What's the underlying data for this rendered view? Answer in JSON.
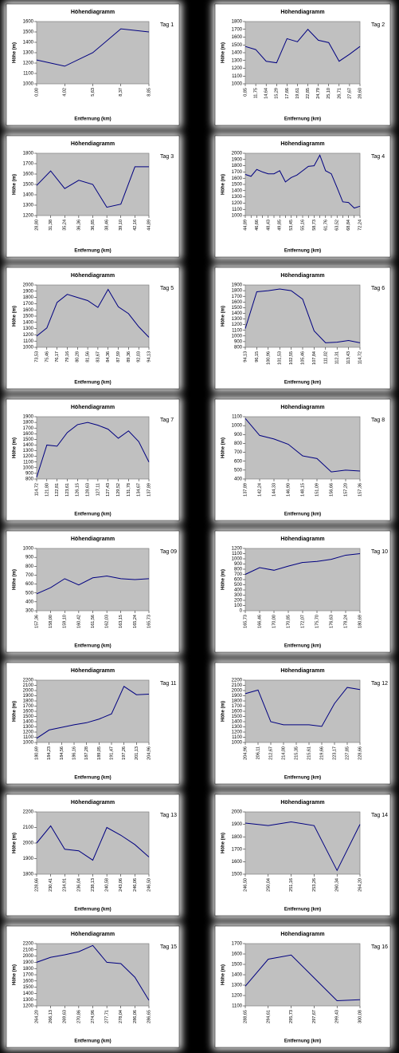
{
  "chart_data": [
    {
      "type": "line",
      "title": "Höhendiagramm",
      "x_label": "Entfernung (km)",
      "y_label": "Höhe (m)",
      "annotation": "Tag 1",
      "color": "#000080",
      "categories": [
        "0,00",
        "4,02",
        "5,63",
        "8,37",
        "8,85"
      ],
      "values": [
        1230,
        1170,
        1300,
        1530,
        1500
      ],
      "ylim": [
        1000,
        1600
      ],
      "yticks": [
        1000,
        1100,
        1200,
        1300,
        1400,
        1500,
        1600
      ]
    },
    {
      "type": "line",
      "title": "Höhendiagramm",
      "x_label": "Entfernung (km)",
      "y_label": "Höhe (m)",
      "annotation": "Tag 2",
      "color": "#000080",
      "categories": [
        "0,85",
        "11,75",
        "14,64",
        "15,29",
        "17,66",
        "19,61",
        "22,85",
        "24,79",
        "25,10",
        "26,71",
        "27,67",
        "28,60"
      ],
      "values": [
        1480,
        1440,
        1290,
        1270,
        1580,
        1540,
        1700,
        1560,
        1530,
        1290,
        1380,
        1480
      ],
      "ylim": [
        1000,
        1800
      ],
      "yticks": [
        1000,
        1100,
        1200,
        1300,
        1400,
        1500,
        1600,
        1700,
        1800
      ]
    },
    {
      "type": "line",
      "title": "Höhendiagramm",
      "x_label": "Entfernung (km)",
      "y_label": "Höhe (m)",
      "annotation": "Tag 3",
      "color": "#000080",
      "categories": [
        "28,80",
        "31,38",
        "35,24",
        "36,36",
        "36,85",
        "38,46",
        "39,10",
        "42,16",
        "44,89"
      ],
      "values": [
        1490,
        1630,
        1460,
        1540,
        1500,
        1280,
        1310,
        1670,
        1670
      ],
      "ylim": [
        1200,
        1800
      ],
      "yticks": [
        1200,
        1300,
        1400,
        1500,
        1600,
        1700,
        1800
      ]
    },
    {
      "type": "line",
      "title": "Höhendiagramm",
      "x_label": "Entfernung (km)",
      "y_label": "Höhe (m)",
      "annotation": "Tag 4",
      "color": "#000080",
      "categories": [
        "44,89",
        null,
        "46,66",
        null,
        "48,43",
        null,
        "49,85",
        null,
        "53,45",
        null,
        "55,16",
        null,
        "58,73",
        null,
        "61,76",
        null,
        "63,52",
        null,
        "68,84",
        null,
        "72,24"
      ],
      "values": [
        1660,
        1630,
        1740,
        1700,
        1670,
        1670,
        1720,
        1540,
        1610,
        1650,
        1720,
        1790,
        1800,
        1970,
        1720,
        1670,
        1450,
        1220,
        1210,
        1120,
        1150
      ],
      "ylim": [
        1000,
        2000
      ],
      "yticks": [
        1000,
        1100,
        1200,
        1300,
        1400,
        1500,
        1600,
        1700,
        1800,
        1900,
        2000
      ]
    },
    {
      "type": "line",
      "title": "Höhendiagramm",
      "x_label": "Entfernung (km)",
      "y_label": "Höhe (m)",
      "annotation": "Tag 5",
      "color": "#000080",
      "categories": [
        "73,53",
        "75,46",
        "76,17",
        "79,16",
        "80,28",
        "81,56",
        "83,67",
        "84,36",
        "87,59",
        "89,36",
        "92,03",
        "94,13"
      ],
      "values": [
        1180,
        1310,
        1720,
        1850,
        1800,
        1750,
        1640,
        1930,
        1650,
        1540,
        1330,
        1160
      ],
      "ylim": [
        1000,
        2000
      ],
      "yticks": [
        1000,
        1100,
        1200,
        1300,
        1400,
        1500,
        1600,
        1700,
        1800,
        1900,
        2000
      ]
    },
    {
      "type": "line",
      "title": "Höhendiagramm",
      "x_label": "Entfernung (km)",
      "y_label": "Höhe (m)",
      "annotation": "Tag 6",
      "color": "#000080",
      "categories": [
        "94,13",
        "96,15",
        "100,96",
        "101,53",
        "102,55",
        "105,46",
        "107,84",
        "111,02",
        "112,31",
        "113,43",
        "114,72"
      ],
      "values": [
        1130,
        1780,
        1800,
        1830,
        1800,
        1650,
        1090,
        880,
        890,
        920,
        880
      ],
      "ylim": [
        800,
        1900
      ],
      "yticks": [
        800,
        900,
        1000,
        1100,
        1200,
        1300,
        1400,
        1500,
        1600,
        1700,
        1800,
        1900
      ]
    },
    {
      "type": "line",
      "title": "Höhendiagramm",
      "x_label": "Entfernung (km)",
      "y_label": "Höhe (m)",
      "annotation": "Tag 7",
      "color": "#000080",
      "categories": [
        "114,72",
        "121,80",
        "122,81",
        "123,61",
        "126,15",
        "128,63",
        "127,11",
        "127,43",
        "129,52",
        "131,78",
        "134,67",
        "137,89"
      ],
      "values": [
        830,
        1400,
        1380,
        1620,
        1760,
        1800,
        1750,
        1680,
        1520,
        1650,
        1460,
        1100
      ],
      "ylim": [
        800,
        1900
      ],
      "yticks": [
        800,
        900,
        1000,
        1100,
        1200,
        1300,
        1400,
        1500,
        1600,
        1700,
        1800,
        1900
      ]
    },
    {
      "type": "line",
      "title": "Höhendiagramm",
      "x_label": "Entfernung (km)",
      "y_label": "Höhe (m)",
      "annotation": "Tag 8",
      "color": "#000080",
      "categories": [
        "137,89",
        "142,24",
        "144,33",
        "146,90",
        "148,15",
        "151,09",
        "156,66",
        "157,20",
        "157,36"
      ],
      "values": [
        1080,
        890,
        850,
        790,
        660,
        630,
        480,
        500,
        490
      ],
      "ylim": [
        400,
        1100
      ],
      "yticks": [
        400,
        500,
        600,
        700,
        800,
        900,
        1000,
        1100
      ]
    },
    {
      "type": "line",
      "title": "Höhendiagramm",
      "x_label": "Entfernung (km)",
      "y_label": "Höhe (m)",
      "annotation": "Tag 09",
      "color": "#000080",
      "categories": [
        "157,36",
        "158,00",
        "159,10",
        "160,42",
        "161,56",
        "162,03",
        "163,15",
        "165,24",
        "165,73"
      ],
      "values": [
        490,
        560,
        660,
        590,
        670,
        690,
        660,
        650,
        660
      ],
      "ylim": [
        300,
        1000
      ],
      "yticks": [
        300,
        400,
        500,
        600,
        700,
        800,
        900,
        1000
      ]
    },
    {
      "type": "line",
      "title": "Höhendiagramm",
      "x_label": "Entfernung (km)",
      "y_label": "Höhe (m)",
      "annotation": "Tag 10",
      "color": "#000080",
      "categories": [
        "165,73",
        "166,46",
        "170,00",
        "170,85",
        "172,07",
        "175,70",
        "176,63",
        "178,24",
        "180,69"
      ],
      "values": [
        700,
        830,
        780,
        860,
        930,
        950,
        990,
        1070,
        1100
      ],
      "ylim": [
        0,
        1200
      ],
      "yticks": [
        0,
        100,
        200,
        300,
        400,
        500,
        600,
        700,
        800,
        900,
        1000,
        1100,
        1200
      ]
    },
    {
      "type": "line",
      "title": "Höhendiagramm",
      "x_label": "Entfernung (km)",
      "y_label": "Höhe (m)",
      "annotation": "Tag 11",
      "color": "#000080",
      "categories": [
        "180,69",
        "184,23",
        "184,56",
        "186,16",
        "187,28",
        "189,05",
        "191,47",
        "197,26",
        "201,13",
        "204,96"
      ],
      "values": [
        1080,
        1240,
        1290,
        1340,
        1380,
        1450,
        1550,
        2080,
        1920,
        1930
      ],
      "ylim": [
        1000,
        2200
      ],
      "yticks": [
        1000,
        1100,
        1200,
        1300,
        1400,
        1500,
        1600,
        1700,
        1800,
        1900,
        2000,
        2100,
        2200
      ]
    },
    {
      "type": "line",
      "title": "Höhendiagramm",
      "x_label": "Entfernung (km)",
      "y_label": "Höhe (m)",
      "annotation": "Tag 12",
      "color": "#000080",
      "categories": [
        "204,96",
        "206,11",
        "212,67",
        "214,00",
        "215,35",
        "215,61",
        "219,66",
        "223,17",
        "227,85",
        "228,66"
      ],
      "values": [
        1940,
        2010,
        1400,
        1340,
        1340,
        1340,
        1310,
        1750,
        2060,
        2020
      ],
      "ylim": [
        1000,
        2200
      ],
      "yticks": [
        1000,
        1100,
        1200,
        1300,
        1400,
        1500,
        1600,
        1700,
        1800,
        1900,
        2000,
        2100,
        2200
      ]
    },
    {
      "type": "line",
      "title": "Höhendiagramm",
      "x_label": "Entfernung (km)",
      "y_label": "Höhe (m)",
      "annotation": "Tag 13",
      "color": "#000080",
      "categories": [
        "228,66",
        "230,41",
        "234,91",
        "236,04",
        "238,13",
        "240,58",
        "243,06",
        "246,06",
        "246,50"
      ],
      "values": [
        2000,
        2110,
        1960,
        1950,
        1890,
        2100,
        2050,
        1990,
        1910
      ],
      "ylim": [
        1800,
        2200
      ],
      "yticks": [
        1800,
        1900,
        2000,
        2100,
        2200
      ]
    },
    {
      "type": "line",
      "title": "Höhendiagramm",
      "x_label": "Entfernung (km)",
      "y_label": "Höhe (m)",
      "annotation": "Tag 14",
      "color": "#000080",
      "categories": [
        "246,50",
        "250,04",
        "251,16",
        "253,26",
        "260,34",
        "264,20"
      ],
      "values": [
        1910,
        1890,
        1920,
        1890,
        1530,
        1900
      ],
      "ylim": [
        1500,
        2000
      ],
      "yticks": [
        1500,
        1600,
        1700,
        1800,
        1900,
        2000
      ]
    },
    {
      "type": "line",
      "title": "Höhendiagramm",
      "x_label": "Entfernung (km)",
      "y_label": "Höhe (m)",
      "annotation": "Tag 15",
      "color": "#000080",
      "categories": [
        "264,20",
        "266,13",
        "269,63",
        "270,86",
        "274,96",
        "277,71",
        "278,04",
        "286,06",
        "286,65"
      ],
      "values": [
        1900,
        1980,
        2020,
        2070,
        2170,
        1900,
        1880,
        1660,
        1290
      ],
      "ylim": [
        1200,
        2200
      ],
      "yticks": [
        1200,
        1300,
        1400,
        1500,
        1600,
        1700,
        1800,
        1900,
        2000,
        2100,
        2200
      ]
    },
    {
      "type": "line",
      "title": "Höhendiagramm",
      "x_label": "Entfernung (km)",
      "y_label": "Höhe (m)",
      "annotation": "Tag 16",
      "color": "#000080",
      "categories": [
        "288,65",
        "294,61",
        "295,73",
        "297,67",
        "299,43",
        "300,08"
      ],
      "values": [
        1290,
        1550,
        1590,
        1370,
        1150,
        1160
      ],
      "ylim": [
        1100,
        1700
      ],
      "yticks": [
        1100,
        1200,
        1300,
        1400,
        1500,
        1600,
        1700
      ]
    }
  ]
}
